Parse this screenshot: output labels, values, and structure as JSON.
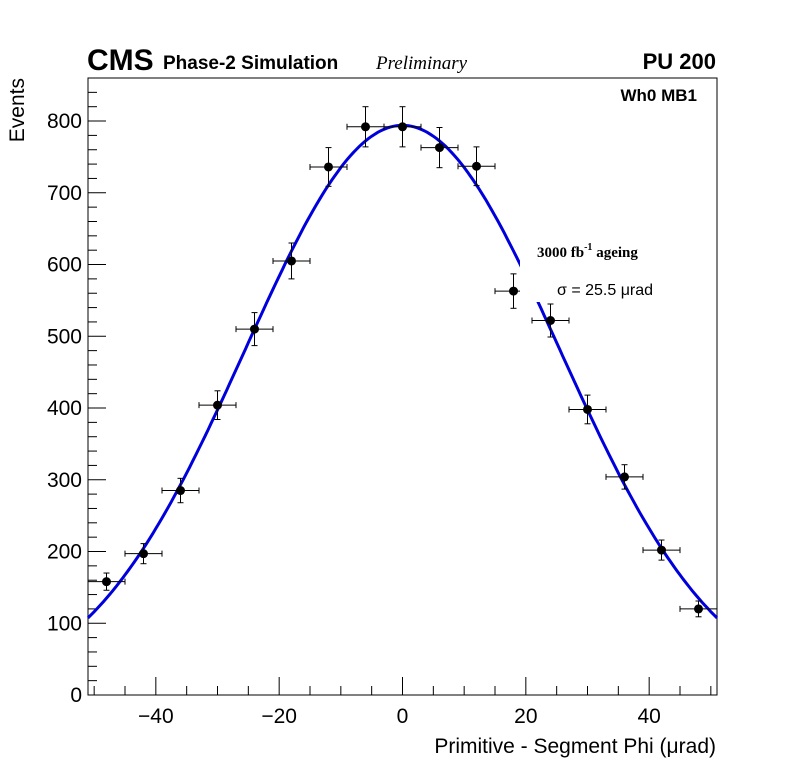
{
  "header": {
    "experiment": "CMS",
    "subtitle": "Phase-2 Simulation",
    "status": "Preliminary",
    "pileup": "PU 200"
  },
  "chart_data": {
    "type": "scatter",
    "title": "",
    "xlabel": "Primitive - Segment Phi (μrad)",
    "ylabel": "Events",
    "xlim": [
      -51,
      51
    ],
    "ylim": [
      0,
      860
    ],
    "x_ticks": [
      -40,
      -20,
      0,
      20,
      40
    ],
    "x_tick_labels": [
      "−40",
      "−20",
      "0",
      "20",
      "40"
    ],
    "y_ticks": [
      0,
      100,
      200,
      300,
      400,
      500,
      600,
      700,
      800
    ],
    "y_tick_labels": [
      "0",
      "100",
      "200",
      "300",
      "400",
      "500",
      "600",
      "700",
      "800"
    ],
    "annotations": {
      "region": "Wh0 MB1",
      "ageing_prefix": "3000 fb",
      "ageing_sup": "-1",
      "ageing_suffix": " ageing",
      "sigma_text": "σ = 25.5 μrad"
    },
    "series": [
      {
        "name": "data",
        "x": [
          -48,
          -42,
          -36,
          -30,
          -24,
          -18,
          -12,
          -6,
          0,
          6,
          12,
          18,
          24,
          30,
          36,
          42,
          48
        ],
        "y": [
          158,
          197,
          285,
          404,
          510,
          605,
          736,
          792,
          792,
          763,
          737,
          563,
          522,
          398,
          304,
          202,
          120
        ],
        "xerr": 3,
        "yerr": [
          12,
          14,
          17,
          20,
          23,
          25,
          27,
          28,
          28,
          28,
          27,
          24,
          23,
          20,
          17,
          14,
          11
        ]
      }
    ],
    "fit": {
      "name": "gaussian fit",
      "function": "gaussian",
      "amplitude": 794,
      "mean": 0,
      "sigma": 25.5,
      "color": "#0000dd"
    }
  }
}
